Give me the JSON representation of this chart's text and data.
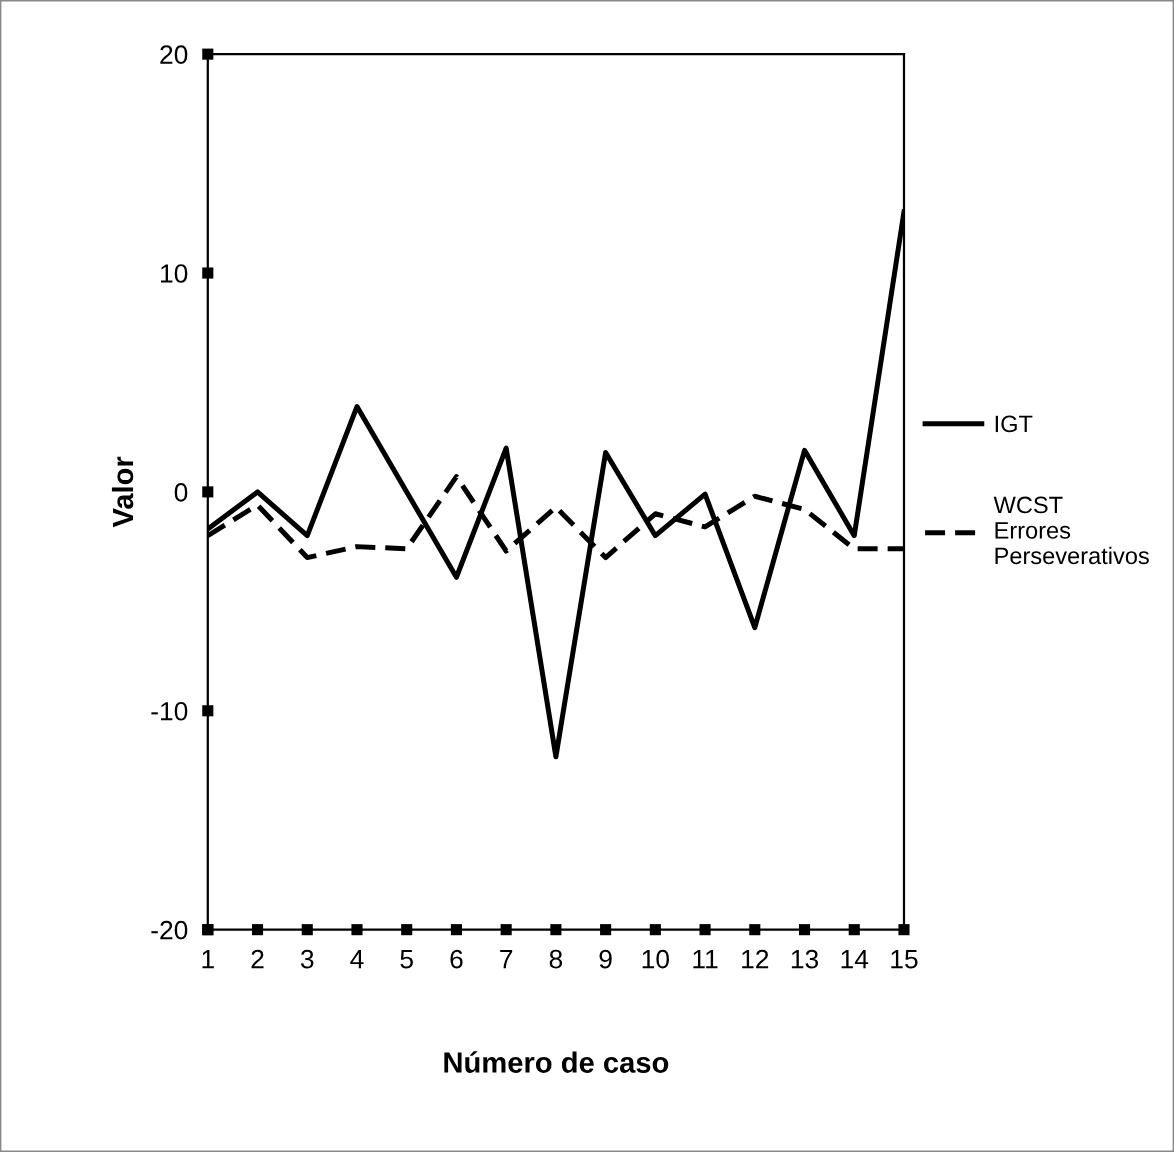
{
  "chart_data": {
    "type": "line",
    "xlabel": "Número de caso",
    "ylabel": "Valor",
    "x": [
      1,
      2,
      3,
      4,
      5,
      6,
      7,
      8,
      9,
      10,
      11,
      12,
      13,
      14,
      15
    ],
    "series": [
      {
        "name": "IGT",
        "color": "#000000",
        "line_style": "solid",
        "values": [
          -1.7,
          0,
          -2.0,
          3.9,
          0,
          -3.9,
          2.0,
          -12.1,
          1.8,
          -2.0,
          -0.1,
          -6.2,
          1.9,
          -2.0,
          12.8
        ]
      },
      {
        "name": "WCST\nErrores\nPerseverativos",
        "color": "#000000",
        "line_style": "dashed",
        "values": [
          -2.0,
          -0.6,
          -3.0,
          -2.5,
          -2.6,
          0.7,
          -2.7,
          -0.7,
          -3.0,
          -1.0,
          -1.6,
          -0.2,
          -0.8,
          -2.6,
          -2.6
        ]
      }
    ],
    "xlim": [
      1,
      15
    ],
    "xticks": [
      1,
      2,
      3,
      4,
      5,
      6,
      7,
      8,
      9,
      10,
      11,
      12,
      13,
      14,
      15
    ],
    "ylim": [
      -20,
      20
    ],
    "yticks": [
      -20,
      -10,
      0,
      10,
      20
    ],
    "grid": false,
    "legend": "right",
    "marker": "none"
  }
}
